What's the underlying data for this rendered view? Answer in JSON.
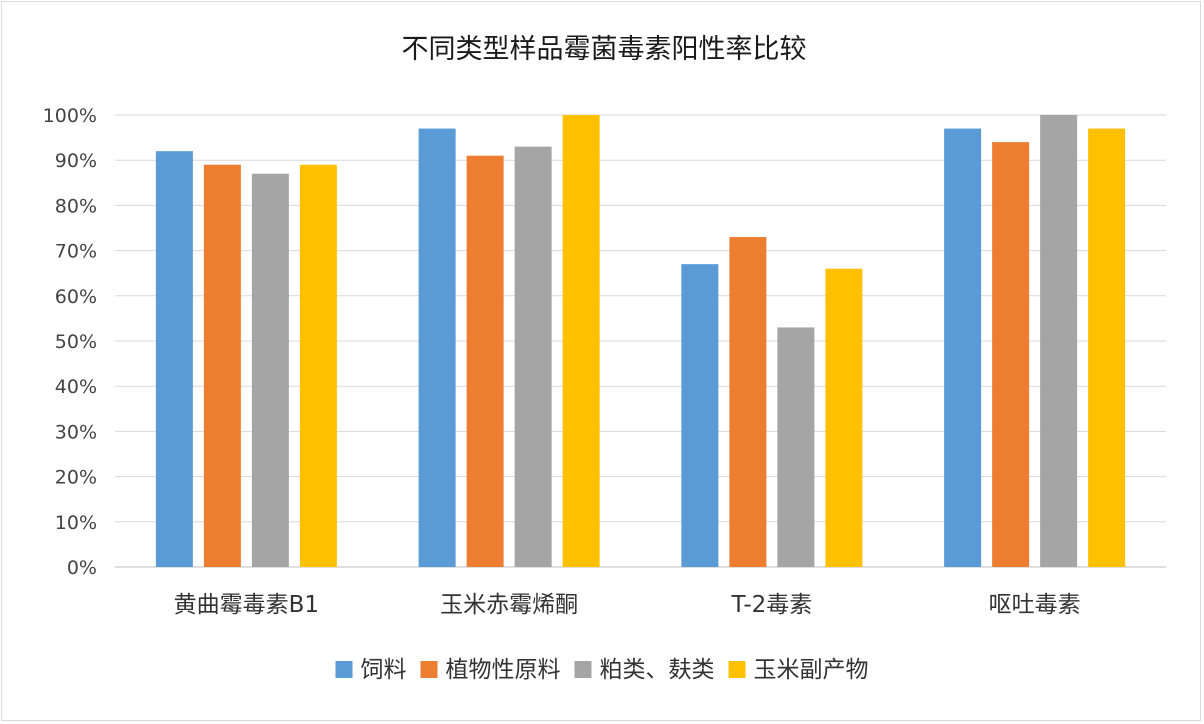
{
  "chart_data": {
    "type": "bar",
    "title": "不同类型样品霉菌毒素阳性率比较",
    "categories": [
      "黄曲霉毒素B1",
      "玉米赤霉烯酮",
      "T-2毒素",
      "呕吐毒素"
    ],
    "series": [
      {
        "name": "饲料",
        "color": "#5b9bd5",
        "values": [
          92,
          97,
          67,
          97
        ]
      },
      {
        "name": "植物性原料",
        "color": "#ed7d31",
        "values": [
          89,
          91,
          73,
          94
        ]
      },
      {
        "name": "粕类、麸类",
        "color": "#a5a5a5",
        "values": [
          87,
          93,
          53,
          100
        ]
      },
      {
        "name": "玉米副产物",
        "color": "#ffc000",
        "values": [
          89,
          100,
          66,
          97
        ]
      }
    ],
    "ylim": [
      0,
      100
    ],
    "yticks": [
      "0%",
      "10%",
      "20%",
      "30%",
      "40%",
      "50%",
      "60%",
      "70%",
      "80%",
      "90%",
      "100%"
    ],
    "grid": true,
    "legend_position": "bottom"
  }
}
